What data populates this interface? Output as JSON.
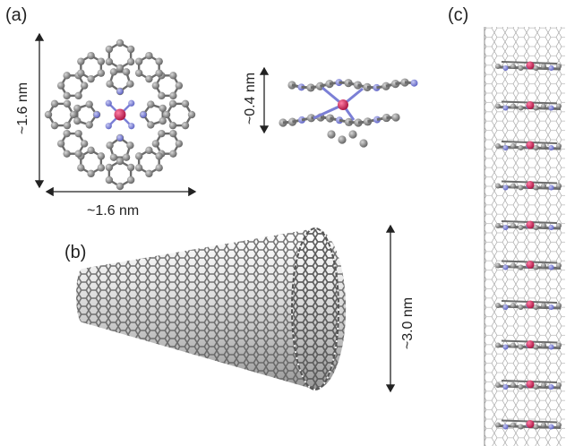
{
  "panels": {
    "a": {
      "label": "(a)",
      "width_label": "~1.6 nm",
      "height_label": "~1.6 nm",
      "side_height_label": "~0.4 nm"
    },
    "b": {
      "label": "(b)",
      "diameter_label": "~3.0 nm"
    },
    "c": {
      "label": "(c)",
      "stacked_molecule_count": 10
    }
  },
  "colors": {
    "carbon": "#8a8a8a",
    "nitrogen": "#7b7fd6",
    "metal": "#d0205a",
    "bond": "#6b6b6b",
    "tube": "#d8d8d8"
  }
}
